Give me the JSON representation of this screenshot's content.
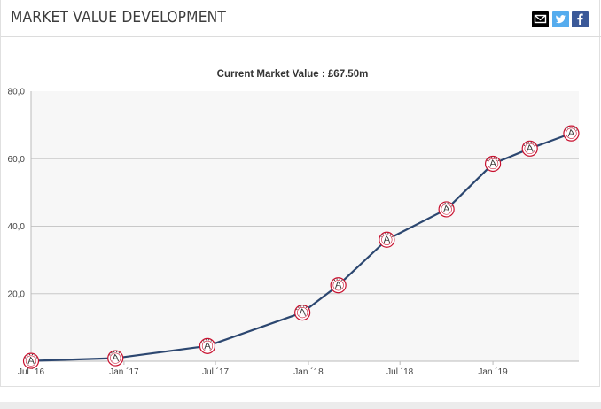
{
  "header": {
    "title": "MARKET VALUE DEVELOPMENT",
    "share_icons": [
      "mail-icon",
      "twitter-icon",
      "facebook-icon"
    ]
  },
  "chart_data": {
    "type": "line",
    "subtitle": "Current Market Value : £67.50m",
    "ylim": [
      0,
      80
    ],
    "y_ticks": [
      "20,0",
      "40,0",
      "60,0",
      "80,0"
    ],
    "y_tick_values": [
      20,
      40,
      60,
      80
    ],
    "x_ticks": [
      "Jul ´16",
      "Jan ´17",
      "Jul ´17",
      "Jan ´18",
      "Jul ´18",
      "Jan ´19"
    ],
    "x_tick_dates": [
      "2016-07-01",
      "2017-01-01",
      "2017-07-01",
      "2018-01-01",
      "2018-07-01",
      "2019-01-01"
    ],
    "grid": true,
    "series": [
      {
        "color": "#2c4770",
        "marker": "club-crest",
        "points": [
          {
            "date": "2016-07-01",
            "value": 0.1
          },
          {
            "date": "2016-12-15",
            "value": 0.9
          },
          {
            "date": "2017-06-15",
            "value": 4.5
          },
          {
            "date": "2017-12-20",
            "value": 14.4
          },
          {
            "date": "2018-03-01",
            "value": 22.5
          },
          {
            "date": "2018-06-05",
            "value": 36.0
          },
          {
            "date": "2018-10-01",
            "value": 45.0
          },
          {
            "date": "2019-01-01",
            "value": 58.5
          },
          {
            "date": "2019-03-15",
            "value": 63.0
          },
          {
            "date": "2019-06-05",
            "value": 67.5
          }
        ]
      }
    ]
  }
}
